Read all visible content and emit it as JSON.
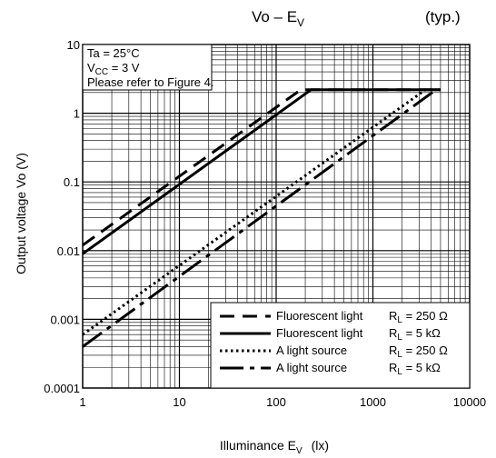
{
  "chart_data": {
    "type": "line",
    "title": "Vo – E",
    "title_sub": "V",
    "title_note": "(typ.)",
    "xlabel": "Illuminance   E",
    "xlabel_sub": "V",
    "xlabel_unit": "(lx)",
    "ylabel": "Output voltage   Vo   (V)",
    "x_scale": "log",
    "y_scale": "log",
    "xlim": [
      1,
      10000
    ],
    "ylim": [
      0.0001,
      10
    ],
    "x_ticks": [
      "1",
      "10",
      "100",
      "1000",
      "10000"
    ],
    "y_ticks": [
      "10",
      "1",
      "0.1",
      "0.01",
      "0.001",
      "0.0001"
    ],
    "grid": true,
    "conditions": {
      "line1": "Ta = 25°C",
      "line2_main": "V",
      "line2_sub": "CC",
      "line2_rest": " = 3 V",
      "line3": "Please refer to Figure 4."
    },
    "legend_position": "bottom-right",
    "series": [
      {
        "name": "Fluorescent light",
        "rl_main": "R",
        "rl_sub": "L",
        "rl_value": " = 250 Ω",
        "style": "dashed",
        "points": [
          [
            1,
            0.012
          ],
          [
            180,
            2.2
          ],
          [
            5000,
            2.2
          ]
        ]
      },
      {
        "name": "Fluorescent light",
        "rl_main": "R",
        "rl_sub": "L",
        "rl_value": " = 5 kΩ",
        "style": "solid",
        "points": [
          [
            1,
            0.009
          ],
          [
            230,
            2.2
          ],
          [
            5000,
            2.2
          ]
        ]
      },
      {
        "name": "A light source",
        "rl_main": "R",
        "rl_sub": "L",
        "rl_value": " = 250 Ω",
        "style": "dotted",
        "points": [
          [
            1,
            0.0006
          ],
          [
            3500,
            2.2
          ],
          [
            5000,
            2.2
          ]
        ]
      },
      {
        "name": "A light source",
        "rl_main": "R",
        "rl_sub": "L",
        "rl_value": " = 5 kΩ",
        "style": "longdash",
        "points": [
          [
            1,
            0.0004
          ],
          [
            4500,
            2.2
          ],
          [
            5000,
            2.2
          ]
        ]
      }
    ]
  }
}
